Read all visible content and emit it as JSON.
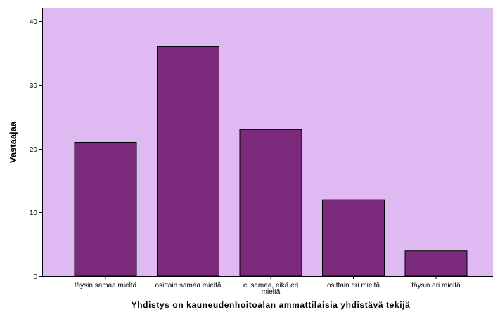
{
  "chart_data": {
    "type": "bar",
    "categories": [
      [
        "täysin samaa mieltä"
      ],
      [
        "osittain samaa mieltä"
      ],
      [
        "ei samaa, eikä eri",
        "mieltä"
      ],
      [
        "osittain eri mieltä"
      ],
      [
        "täysin eri mieltä"
      ]
    ],
    "values": [
      21,
      36,
      23,
      12,
      4
    ],
    "xlabel": "Yhdistys on kauneudenhoitoalan ammattilaisia yhdistävä tekijä",
    "ylabel": "Vastaajaa",
    "ylim": [
      0,
      42
    ],
    "yticks": [
      0,
      10,
      20,
      30,
      40
    ],
    "grid": false,
    "colors": {
      "plot_background": "#dfb9f1",
      "bar_fill": "#7c2a7c",
      "bar_stroke": "#000000"
    }
  }
}
